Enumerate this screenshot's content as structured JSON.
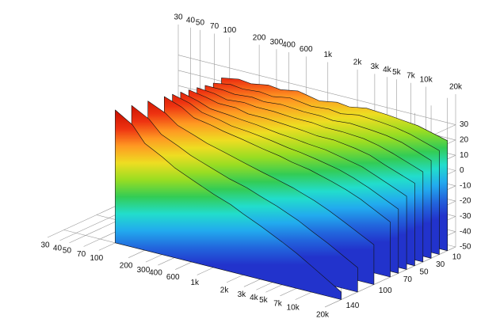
{
  "chart_data": {
    "type": "waterfall",
    "xscale": "log",
    "xlim": [
      30,
      20000
    ],
    "xticks": [
      30,
      40,
      50,
      70,
      100,
      200,
      300,
      400,
      600,
      {
        "value": 1000,
        "label": "1k"
      },
      {
        "value": 2000,
        "label": "2k"
      },
      {
        "value": 3000,
        "label": "3k"
      },
      {
        "value": 4000,
        "label": "4k"
      },
      {
        "value": 5000,
        "label": "5k"
      },
      {
        "value": 7000,
        "label": "7k"
      },
      {
        "value": 10000,
        "label": "10k"
      },
      {
        "value": 20000,
        "label": "20k"
      }
    ],
    "ylim": [
      0,
      160
    ],
    "yticks": [
      10,
      30,
      50,
      70,
      100,
      140
    ],
    "zlim": [
      -50,
      50
    ],
    "zticks": [
      30,
      20,
      10,
      0,
      -10,
      -20,
      -30,
      -40,
      -50
    ],
    "colors": [
      "#2233cc",
      "#2266dd",
      "#22aaee",
      "#22ddcc",
      "#33cc55",
      "#99dd22",
      "#eedd22",
      "#ff9922",
      "#ee3311",
      "#cc1100"
    ],
    "x": [
      100,
      150,
      200,
      300,
      400,
      600,
      1000,
      1500,
      2000,
      3000,
      5000,
      7000,
      10000,
      20000
    ],
    "series": [
      {
        "t": 10,
        "values": [
          26,
          28,
          27,
          29,
          28,
          30,
          27,
          29,
          28,
          30,
          29,
          28,
          27,
          22
        ]
      },
      {
        "t": 20,
        "values": [
          25,
          27,
          26,
          27,
          26,
          28,
          26,
          27,
          26,
          28,
          27,
          26,
          24,
          18
        ]
      },
      {
        "t": 30,
        "values": [
          26,
          26,
          25,
          26,
          25,
          26,
          25,
          25,
          24,
          25,
          24,
          23,
          21,
          14
        ]
      },
      {
        "t": 40,
        "values": [
          27,
          26,
          24,
          25,
          24,
          24,
          23,
          23,
          22,
          22,
          21,
          19,
          16,
          9
        ]
      },
      {
        "t": 50,
        "values": [
          28,
          26,
          24,
          24,
          22,
          22,
          21,
          20,
          19,
          19,
          17,
          15,
          11,
          4
        ]
      },
      {
        "t": 60,
        "values": [
          29,
          26,
          23,
          22,
          21,
          20,
          18,
          17,
          16,
          15,
          12,
          10,
          6,
          -2
        ]
      },
      {
        "t": 70,
        "values": [
          30,
          27,
          23,
          21,
          19,
          18,
          16,
          14,
          13,
          11,
          8,
          5,
          1,
          -8
        ]
      },
      {
        "t": 80,
        "values": [
          31,
          27,
          22,
          20,
          18,
          16,
          13,
          11,
          9,
          7,
          3,
          0,
          -4,
          -14
        ]
      },
      {
        "t": 100,
        "values": [
          33,
          28,
          22,
          18,
          15,
          12,
          8,
          5,
          3,
          0,
          -5,
          -9,
          -14,
          -24
        ]
      },
      {
        "t": 120,
        "values": [
          35,
          29,
          21,
          16,
          12,
          8,
          3,
          0,
          -3,
          -7,
          -13,
          -18,
          -23,
          -34
        ]
      },
      {
        "t": 140,
        "values": [
          37,
          30,
          20,
          14,
          9,
          4,
          -2,
          -6,
          -10,
          -15,
          -22,
          -27,
          -33,
          -45
        ]
      }
    ]
  }
}
